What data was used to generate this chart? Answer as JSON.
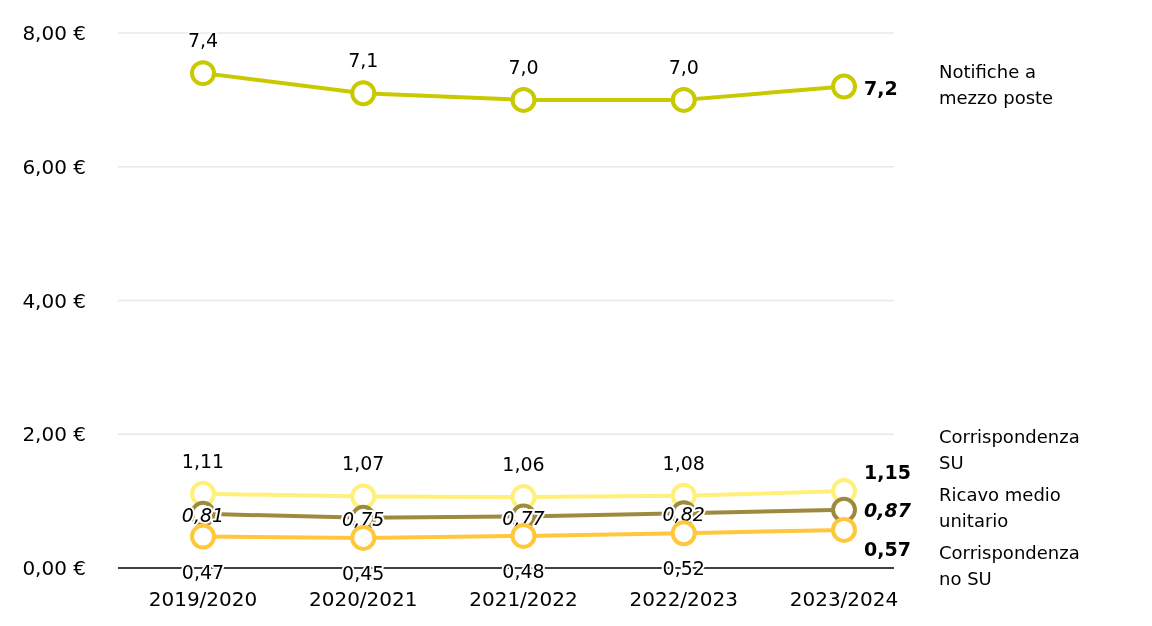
{
  "chart_data": {
    "type": "line",
    "categories": [
      "2019/2020",
      "2020/2021",
      "2021/2022",
      "2022/2023",
      "2023/2024"
    ],
    "series": [
      {
        "name": "Notifiche a mezzo poste",
        "color": "#c9c900",
        "values": [
          7.4,
          7.1,
          7.0,
          7.0,
          7.2
        ],
        "value_labels": [
          "7,4",
          "7,1",
          "7,0",
          "7,0",
          "7,2"
        ]
      },
      {
        "name": "Corrispondenza SU",
        "color": "#fff07a",
        "values": [
          1.11,
          1.07,
          1.06,
          1.08,
          1.15
        ],
        "value_labels": [
          "1,11",
          "1,07",
          "1,06",
          "1,08",
          "1,15"
        ]
      },
      {
        "name": "Ricavo medio unitario",
        "color": "#9e8a3e",
        "values": [
          0.81,
          0.75,
          0.77,
          0.82,
          0.87
        ],
        "value_labels": [
          "0,81",
          "0,75",
          "0,77",
          "0,82",
          "0,87"
        ]
      },
      {
        "name": "Corrispondenza no SU",
        "color": "#ffc83c",
        "values": [
          0.47,
          0.45,
          0.48,
          0.52,
          0.57
        ],
        "value_labels": [
          "0,47",
          "0,45",
          "0,48",
          "0,52",
          "0,57"
        ]
      }
    ],
    "ylim": [
      0,
      8
    ],
    "yticks": [
      {
        "value": 0,
        "label": "0,00 €"
      },
      {
        "value": 2,
        "label": "2,00 €"
      },
      {
        "value": 4,
        "label": "4,00 €"
      },
      {
        "value": 6,
        "label": "6,00 €"
      },
      {
        "value": 8,
        "label": "8,00 €"
      }
    ],
    "grid": "y",
    "legend": false,
    "marker": "circle",
    "line_style": "solid"
  }
}
